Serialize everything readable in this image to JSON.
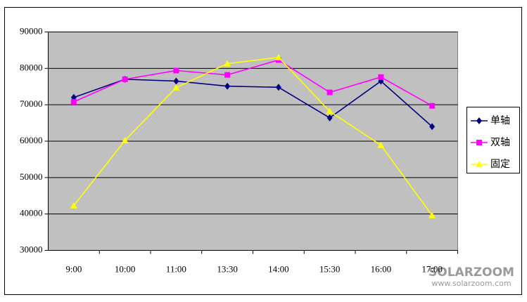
{
  "chart_data": {
    "type": "line",
    "categories": [
      "9:00",
      "10:00",
      "11:00",
      "13:30",
      "14:00",
      "15:30",
      "16:00",
      "17:00"
    ],
    "series": [
      {
        "name": "单轴",
        "color": "#000080",
        "marker": "diamond",
        "values": [
          72000,
          77000,
          76500,
          75100,
          74800,
          66400,
          76500,
          64000
        ]
      },
      {
        "name": "双轴",
        "color": "#ff00ff",
        "marker": "square",
        "values": [
          70800,
          77000,
          79400,
          78200,
          82300,
          73400,
          77600,
          69700
        ]
      },
      {
        "name": "固定",
        "color": "#ffff00",
        "marker": "triangle",
        "values": [
          42300,
          60200,
          74700,
          81300,
          83000,
          68200,
          58900,
          39600
        ]
      }
    ],
    "ylim": [
      30000,
      90000
    ],
    "yticks": [
      30000,
      40000,
      50000,
      60000,
      70000,
      80000,
      90000
    ],
    "grid": true,
    "legend": "right",
    "watermark": {
      "logo": "SOLARZOOM",
      "url": "www.solarzoom.com"
    }
  }
}
